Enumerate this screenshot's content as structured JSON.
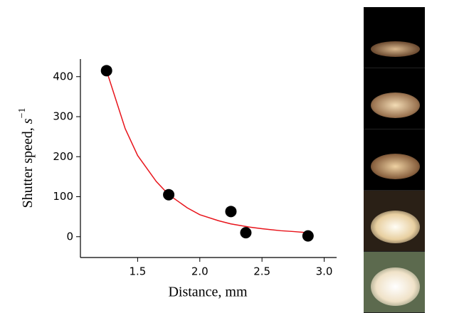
{
  "chart_data": {
    "type": "scatter",
    "xlabel": "Distance, mm",
    "ylabel": "Shutter speed, ",
    "ylabel_unit": "s",
    "ylabel_exponent": "−1",
    "xlim": [
      1.04,
      3.1
    ],
    "ylim": [
      -52,
      444
    ],
    "xticks": [
      1.5,
      {
        "value": 2,
        "label": "2.0"
      },
      2.5,
      {
        "value": 3,
        "label": "3.0"
      }
    ],
    "yticks": [
      0,
      100,
      200,
      300,
      400
    ],
    "series": [
      {
        "kind": "points",
        "color": "#000000",
        "x": [
          1.25,
          1.75,
          2.25,
          2.37,
          2.87
        ],
        "values": [
          415,
          105,
          63,
          10,
          2
        ]
      },
      {
        "kind": "fit",
        "color": "#e8141b",
        "x": [
          1.25,
          1.4,
          1.5,
          1.65,
          1.75,
          1.9,
          2.0,
          2.15,
          2.25,
          2.4,
          2.5,
          2.65,
          2.75,
          2.87
        ],
        "values": [
          415,
          270,
          203,
          138,
          105,
          72,
          55,
          40,
          32,
          24,
          20,
          15,
          13,
          10
        ]
      }
    ]
  }
}
